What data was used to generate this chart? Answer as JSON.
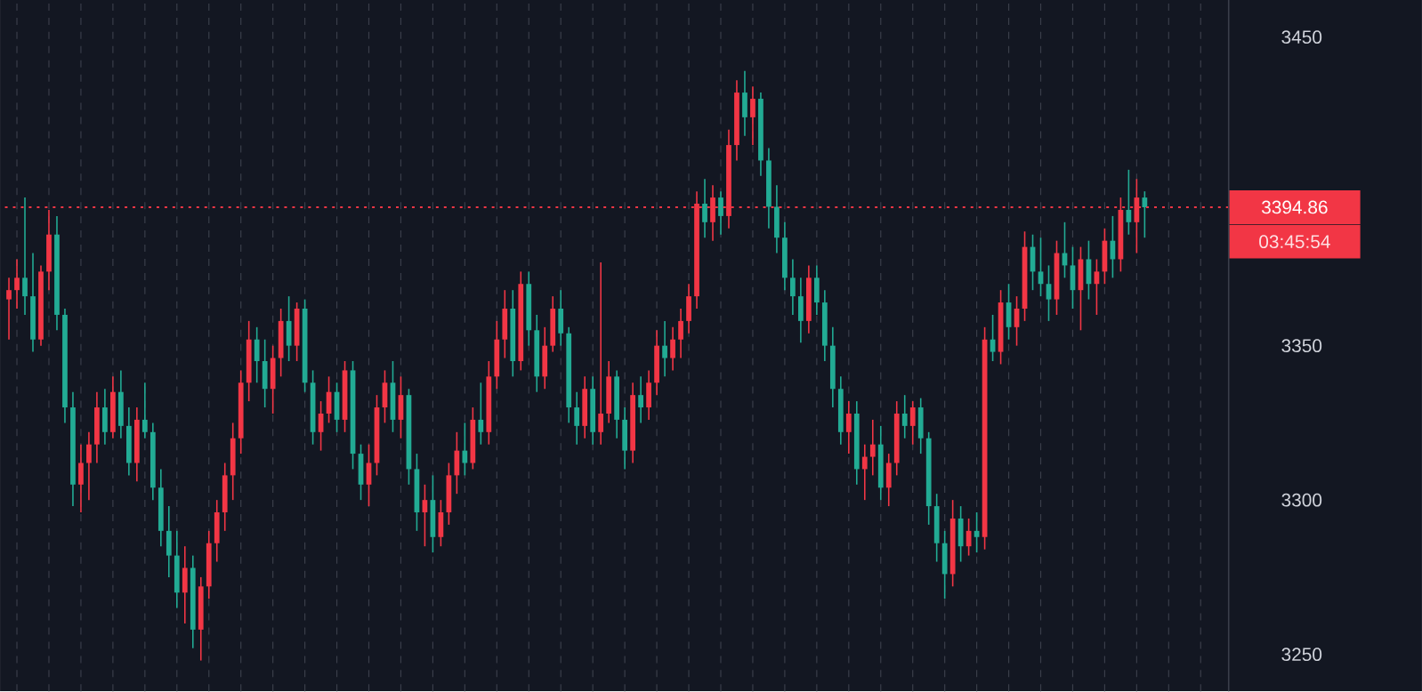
{
  "chart_data": {
    "type": "candlestick",
    "categories": [
      null,
      null,
      null,
      null,
      null,
      null,
      null,
      null,
      null,
      null,
      null,
      null,
      null,
      null,
      null,
      null,
      null,
      null,
      null,
      null,
      null,
      null,
      null,
      null,
      null,
      null,
      null,
      null,
      null,
      null,
      null,
      null,
      null,
      null,
      null,
      null,
      null,
      null,
      null,
      null,
      null,
      null,
      null,
      null,
      null,
      null,
      null,
      null,
      null,
      null,
      null,
      null,
      null,
      null,
      null,
      null,
      null,
      null,
      null,
      null,
      null,
      null,
      null,
      null,
      null,
      null,
      null,
      null,
      null,
      null,
      null,
      null,
      null,
      null,
      null,
      null,
      null,
      null,
      null,
      null,
      null,
      null,
      null,
      null,
      null,
      null,
      null,
      null,
      null,
      null,
      null,
      null,
      null,
      null,
      null,
      null,
      null,
      null,
      null,
      null,
      null,
      null,
      null,
      null,
      null,
      null,
      null,
      null,
      null,
      null,
      null,
      null,
      null,
      null,
      null,
      null,
      null,
      null,
      null,
      null,
      null,
      null,
      null,
      null,
      null,
      null,
      null,
      null,
      null,
      null,
      null,
      null,
      null,
      null,
      null,
      null,
      null,
      null,
      null,
      null,
      null,
      null,
      null,
      null,
      null,
      null,
      null,
      null,
      null,
      null,
      null,
      null,
      null
    ],
    "ohlc": [
      [
        3365,
        3372,
        3352,
        3368
      ],
      [
        3368,
        3378,
        3362,
        3372
      ],
      [
        3372,
        3398,
        3360,
        3366
      ],
      [
        3366,
        3380,
        3348,
        3352
      ],
      [
        3352,
        3376,
        3350,
        3374
      ],
      [
        3374,
        3394,
        3368,
        3386
      ],
      [
        3386,
        3392,
        3355,
        3360
      ],
      [
        3360,
        3362,
        3325,
        3330
      ],
      [
        3330,
        3335,
        3298,
        3305
      ],
      [
        3305,
        3318,
        3296,
        3312
      ],
      [
        3312,
        3322,
        3300,
        3318
      ],
      [
        3318,
        3335,
        3312,
        3330
      ],
      [
        3330,
        3336,
        3318,
        3322
      ],
      [
        3322,
        3340,
        3320,
        3335
      ],
      [
        3335,
        3342,
        3320,
        3324
      ],
      [
        3324,
        3330,
        3308,
        3312
      ],
      [
        3312,
        3330,
        3306,
        3326
      ],
      [
        3326,
        3338,
        3320,
        3322
      ],
      [
        3322,
        3325,
        3300,
        3304
      ],
      [
        3304,
        3310,
        3285,
        3290
      ],
      [
        3290,
        3298,
        3275,
        3282
      ],
      [
        3282,
        3290,
        3265,
        3270
      ],
      [
        3270,
        3285,
        3260,
        3278
      ],
      [
        3278,
        3282,
        3252,
        3258
      ],
      [
        3258,
        3275,
        3248,
        3272
      ],
      [
        3272,
        3290,
        3268,
        3286
      ],
      [
        3286,
        3300,
        3280,
        3296
      ],
      [
        3296,
        3312,
        3290,
        3308
      ],
      [
        3308,
        3325,
        3300,
        3320
      ],
      [
        3320,
        3342,
        3315,
        3338
      ],
      [
        3338,
        3358,
        3332,
        3352
      ],
      [
        3352,
        3356,
        3338,
        3345
      ],
      [
        3345,
        3352,
        3330,
        3336
      ],
      [
        3336,
        3350,
        3328,
        3346
      ],
      [
        3346,
        3362,
        3340,
        3358
      ],
      [
        3358,
        3366,
        3345,
        3350
      ],
      [
        3350,
        3364,
        3345,
        3362
      ],
      [
        3362,
        3365,
        3335,
        3338
      ],
      [
        3338,
        3342,
        3318,
        3322
      ],
      [
        3322,
        3332,
        3316,
        3328
      ],
      [
        3328,
        3340,
        3325,
        3335
      ],
      [
        3335,
        3338,
        3322,
        3326
      ],
      [
        3326,
        3345,
        3322,
        3342
      ],
      [
        3342,
        3345,
        3310,
        3315
      ],
      [
        3315,
        3318,
        3300,
        3305
      ],
      [
        3305,
        3318,
        3298,
        3312
      ],
      [
        3312,
        3334,
        3308,
        3330
      ],
      [
        3330,
        3342,
        3325,
        3338
      ],
      [
        3338,
        3345,
        3322,
        3326
      ],
      [
        3326,
        3340,
        3320,
        3334
      ],
      [
        3334,
        3336,
        3305,
        3310
      ],
      [
        3310,
        3315,
        3290,
        3296
      ],
      [
        3296,
        3305,
        3285,
        3300
      ],
      [
        3300,
        3308,
        3283,
        3288
      ],
      [
        3288,
        3300,
        3285,
        3296
      ],
      [
        3296,
        3312,
        3292,
        3308
      ],
      [
        3308,
        3322,
        3302,
        3316
      ],
      [
        3316,
        3325,
        3308,
        3312
      ],
      [
        3312,
        3330,
        3310,
        3326
      ],
      [
        3326,
        3338,
        3318,
        3322
      ],
      [
        3322,
        3345,
        3318,
        3340
      ],
      [
        3340,
        3358,
        3336,
        3352
      ],
      [
        3352,
        3368,
        3346,
        3362
      ],
      [
        3362,
        3368,
        3340,
        3345
      ],
      [
        3345,
        3374,
        3342,
        3370
      ],
      [
        3370,
        3374,
        3350,
        3355
      ],
      [
        3355,
        3360,
        3335,
        3340
      ],
      [
        3340,
        3356,
        3336,
        3350
      ],
      [
        3350,
        3366,
        3348,
        3362
      ],
      [
        3362,
        3368,
        3350,
        3354
      ],
      [
        3354,
        3356,
        3325,
        3330
      ],
      [
        3330,
        3335,
        3318,
        3324
      ],
      [
        3324,
        3340,
        3320,
        3336
      ],
      [
        3336,
        3340,
        3318,
        3322
      ],
      [
        3322,
        3377,
        3318,
        3328
      ],
      [
        3328,
        3345,
        3325,
        3340
      ],
      [
        3340,
        3342,
        3320,
        3326
      ],
      [
        3326,
        3330,
        3310,
        3316
      ],
      [
        3316,
        3338,
        3312,
        3334
      ],
      [
        3334,
        3340,
        3325,
        3330
      ],
      [
        3330,
        3342,
        3326,
        3338
      ],
      [
        3338,
        3355,
        3334,
        3350
      ],
      [
        3350,
        3358,
        3340,
        3346
      ],
      [
        3346,
        3356,
        3342,
        3352
      ],
      [
        3352,
        3362,
        3346,
        3358
      ],
      [
        3358,
        3370,
        3354,
        3366
      ],
      [
        3366,
        3400,
        3362,
        3396
      ],
      [
        3396,
        3404,
        3385,
        3390
      ],
      [
        3390,
        3402,
        3384,
        3398
      ],
      [
        3398,
        3400,
        3386,
        3392
      ],
      [
        3392,
        3420,
        3388,
        3415
      ],
      [
        3415,
        3436,
        3410,
        3432
      ],
      [
        3432,
        3439,
        3418,
        3424
      ],
      [
        3424,
        3434,
        3415,
        3430
      ],
      [
        3430,
        3432,
        3405,
        3410
      ],
      [
        3410,
        3414,
        3388,
        3395
      ],
      [
        3395,
        3402,
        3380,
        3385
      ],
      [
        3385,
        3390,
        3368,
        3372
      ],
      [
        3372,
        3378,
        3360,
        3366
      ],
      [
        3366,
        3372,
        3351,
        3358
      ],
      [
        3358,
        3376,
        3354,
        3372
      ],
      [
        3372,
        3376,
        3360,
        3364
      ],
      [
        3364,
        3368,
        3345,
        3350
      ],
      [
        3350,
        3356,
        3330,
        3336
      ],
      [
        3336,
        3340,
        3318,
        3322
      ],
      [
        3322,
        3332,
        3315,
        3328
      ],
      [
        3328,
        3332,
        3305,
        3310
      ],
      [
        3310,
        3318,
        3300,
        3314
      ],
      [
        3314,
        3326,
        3308,
        3318
      ],
      [
        3318,
        3324,
        3300,
        3304
      ],
      [
        3304,
        3315,
        3298,
        3312
      ],
      [
        3312,
        3332,
        3308,
        3328
      ],
      [
        3328,
        3334,
        3320,
        3324
      ],
      [
        3324,
        3332,
        3318,
        3330
      ],
      [
        3330,
        3333,
        3315,
        3320
      ],
      [
        3320,
        3322,
        3292,
        3298
      ],
      [
        3298,
        3302,
        3280,
        3286
      ],
      [
        3286,
        3290,
        3268,
        3276
      ],
      [
        3276,
        3300,
        3272,
        3294
      ],
      [
        3294,
        3298,
        3280,
        3285
      ],
      [
        3285,
        3294,
        3282,
        3290
      ],
      [
        3290,
        3296,
        3283,
        3288
      ],
      [
        3288,
        3356,
        3284,
        3352
      ],
      [
        3352,
        3360,
        3345,
        3348
      ],
      [
        3348,
        3368,
        3344,
        3364
      ],
      [
        3364,
        3370,
        3352,
        3356
      ],
      [
        3356,
        3366,
        3350,
        3362
      ],
      [
        3362,
        3387,
        3358,
        3382
      ],
      [
        3382,
        3386,
        3368,
        3374
      ],
      [
        3374,
        3385,
        3366,
        3370
      ],
      [
        3370,
        3376,
        3358,
        3365
      ],
      [
        3365,
        3384,
        3360,
        3380
      ],
      [
        3380,
        3390,
        3372,
        3376
      ],
      [
        3376,
        3382,
        3362,
        3368
      ],
      [
        3368,
        3382,
        3355,
        3378
      ],
      [
        3378,
        3384,
        3365,
        3370
      ],
      [
        3370,
        3378,
        3360,
        3374
      ],
      [
        3374,
        3388,
        3370,
        3384
      ],
      [
        3384,
        3392,
        3372,
        3378
      ],
      [
        3378,
        3398,
        3374,
        3394
      ],
      [
        3394,
        3407,
        3386,
        3390
      ],
      [
        3390,
        3404,
        3380,
        3398
      ],
      [
        3398,
        3400,
        3385,
        3394.86
      ],
      null,
      null,
      null,
      null,
      null,
      null,
      null,
      null,
      null,
      null
    ],
    "colors": [
      "#f23645",
      "#f23645",
      "#22ab94",
      "#22ab94",
      "#f23645",
      "#f23645",
      "#22ab94",
      "#22ab94",
      "#22ab94",
      "#f23645",
      "#f23645",
      "#f23645",
      "#22ab94",
      "#f23645",
      "#22ab94",
      "#22ab94",
      "#f23645",
      "#22ab94",
      "#22ab94",
      "#22ab94",
      "#22ab94",
      "#22ab94",
      "#f23645",
      "#22ab94",
      "#f23645",
      "#f23645",
      "#f23645",
      "#f23645",
      "#f23645",
      "#f23645",
      "#f23645",
      "#22ab94",
      "#22ab94",
      "#f23645",
      "#f23645",
      "#22ab94",
      "#f23645",
      "#22ab94",
      "#22ab94",
      "#f23645",
      "#f23645",
      "#22ab94",
      "#f23645",
      "#22ab94",
      "#22ab94",
      "#f23645",
      "#f23645",
      "#f23645",
      "#22ab94",
      "#f23645",
      "#22ab94",
      "#22ab94",
      "#f23645",
      "#22ab94",
      "#f23645",
      "#f23645",
      "#f23645",
      "#22ab94",
      "#f23645",
      "#22ab94",
      "#f23645",
      "#f23645",
      "#f23645",
      "#22ab94",
      "#f23645",
      "#22ab94",
      "#22ab94",
      "#f23645",
      "#f23645",
      "#22ab94",
      "#22ab94",
      "#22ab94",
      "#f23645",
      "#22ab94",
      "#f23645",
      "#f23645",
      "#22ab94",
      "#22ab94",
      "#f23645",
      "#22ab94",
      "#f23645",
      "#f23645",
      "#22ab94",
      "#f23645",
      "#f23645",
      "#f23645",
      "#f23645",
      "#22ab94",
      "#f23645",
      "#22ab94",
      "#f23645",
      "#f23645",
      "#22ab94",
      "#f23645",
      "#22ab94",
      "#22ab94",
      "#22ab94",
      "#22ab94",
      "#22ab94",
      "#22ab94",
      "#f23645",
      "#22ab94",
      "#22ab94",
      "#22ab94",
      "#22ab94",
      "#f23645",
      "#22ab94",
      "#f23645",
      "#f23645",
      "#22ab94",
      "#f23645",
      "#f23645",
      "#22ab94",
      "#f23645",
      "#22ab94",
      "#22ab94",
      "#22ab94",
      "#22ab94",
      "#f23645",
      "#22ab94",
      "#f23645",
      "#22ab94",
      "#f23645",
      "#22ab94",
      "#f23645",
      "#22ab94",
      "#f23645",
      "#f23645",
      "#22ab94",
      "#22ab94",
      "#22ab94",
      "#f23645",
      "#22ab94",
      "#22ab94",
      "#f23645",
      "#22ab94",
      "#f23645",
      "#f23645",
      "#22ab94",
      "#f23645",
      "#22ab94",
      "#f23645",
      "#22ab94",
      null,
      null,
      null,
      null,
      null,
      null,
      null,
      null,
      null,
      null
    ],
    "ylim": [
      3238,
      3462
    ],
    "yticks": [
      3250,
      3300,
      3350,
      3450
    ],
    "ref_lines": [
      {
        "axis": "y",
        "value": 3394.86,
        "label": "3394.86",
        "color": "#f23645",
        "line_style": "dotted"
      }
    ],
    "annotations": [
      "03:45:54"
    ],
    "grid": "x",
    "tick_labels": "y"
  }
}
